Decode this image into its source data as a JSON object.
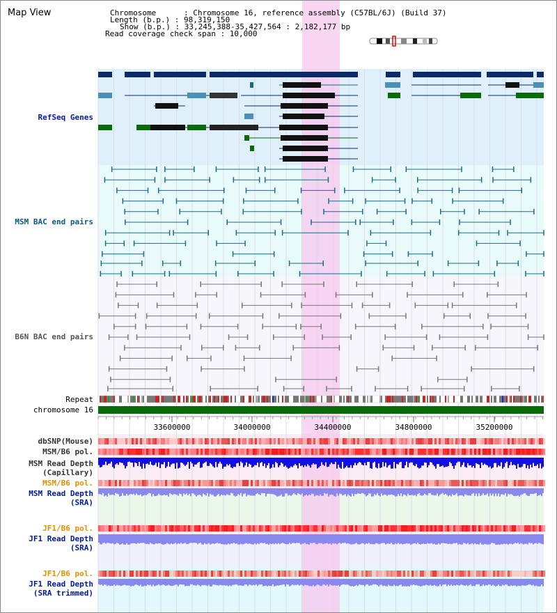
{
  "title": "Map View",
  "info": {
    "chromosome_label": "Chromosome      : ",
    "chromosome": "Chromosome 16, reference assembly (C57BL/6J) (Build 37)",
    "length_label": "Length (b.p.) : ",
    "length": "98,319,150",
    "show_label": "Show (b.p.) : ",
    "show": "33,245,388-35,427,564 : 2,182,177 bp",
    "coverage_label": "Read coverage check span : ",
    "coverage": "10,000"
  },
  "tracks": {
    "refseq": "RefSeq Genes",
    "msm_bac": "MSM BAC end pairs",
    "b6n_bac": "B6N BAC end pairs",
    "repeat": "Repeat",
    "chromosome": "chromosome 16"
  },
  "axis_ticks": [
    "33600000",
    "34000000",
    "34400000",
    "34800000",
    "35200000"
  ],
  "lower_tracks": {
    "dbsnp": "dbSNP(Mouse)",
    "msm_b6_pol": "MSM/B6 pol.",
    "msm_depth_cap_1": "MSM Read Depth",
    "msm_depth_cap_2": "(Capillary)",
    "msm_b6_pol_2": "MSM/B6 pol.",
    "msm_depth_sra_1": "MSM Read Depth",
    "msm_depth_sra_2": "(SRA)",
    "jf1_pol": "JF1/B6 pol.",
    "jf1_depth_1": "JF1 Read Depth",
    "jf1_depth_2": "(SRA)",
    "jf1_pol_2": "JF1/B6 pol.",
    "jf1_trim_1": "JF1 Read Depth",
    "jf1_trim_2": "(SRA trimmed)"
  },
  "colors": {
    "refseq_dark": "#0a2a6a",
    "refseq_light": "#4a90b8",
    "refseq_green": "#0a6a0a",
    "msm_line": "#1a6a8a",
    "b6n_line": "#777777",
    "highlight": "#f7c8ee",
    "chromosome_green": "#0a6a0a",
    "depth_blue": "#1010e0",
    "depth_light": "#8888ee",
    "orange_label": "#e09000",
    "navy_label": "#001a99"
  }
}
